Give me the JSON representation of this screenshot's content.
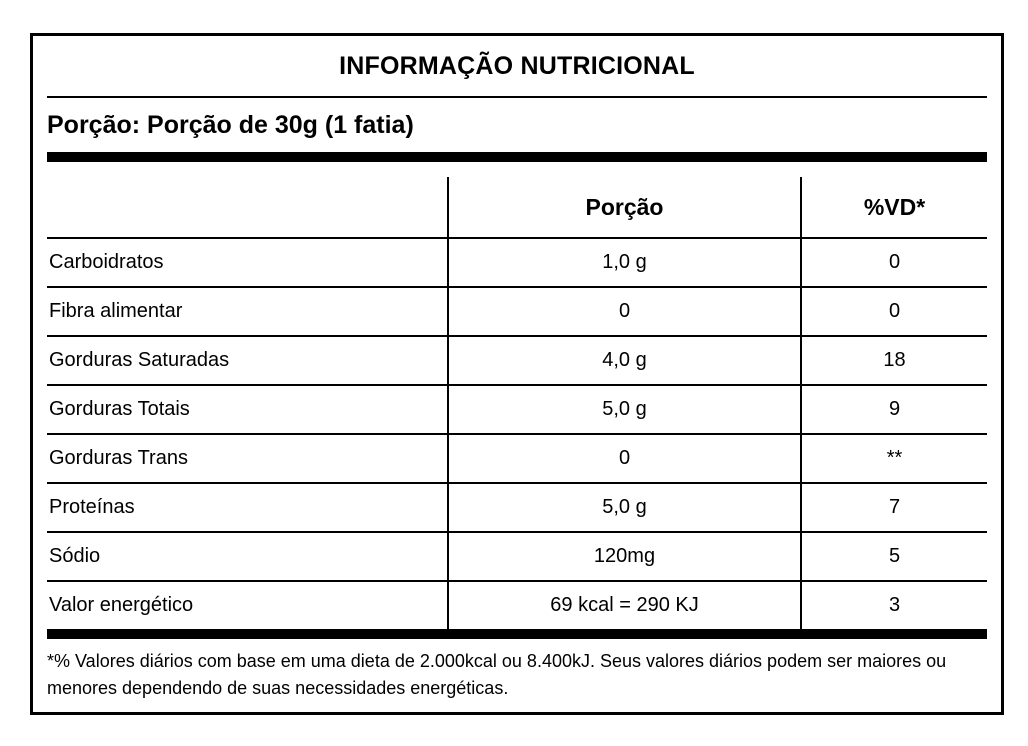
{
  "label": {
    "title": "INFORMAÇÃO NUTRICIONAL",
    "serving_line": "Porção: Porção de 30g (1 fatia)",
    "table": {
      "columns": [
        "",
        "Porção",
        "%VD*"
      ],
      "rows": [
        {
          "name": "Carboidratos",
          "amount": "1,0 g",
          "dv": "0"
        },
        {
          "name": "Fibra alimentar",
          "amount": "0",
          "dv": "0"
        },
        {
          "name": "Gorduras Saturadas",
          "amount": "4,0 g",
          "dv": "18"
        },
        {
          "name": "Gorduras Totais",
          "amount": "5,0 g",
          "dv": "9"
        },
        {
          "name": "Gorduras Trans",
          "amount": "0",
          "dv": "**"
        },
        {
          "name": "Proteínas",
          "amount": "5,0 g",
          "dv": "7"
        },
        {
          "name": "Sódio",
          "amount": "120mg",
          "dv": "5"
        },
        {
          "name": "Valor energético",
          "amount": "69 kcal = 290 KJ",
          "dv": "3"
        }
      ]
    },
    "footnote": "*% Valores diários com base em uma dieta de 2.000kcal ou 8.400kJ. Seus valores diários podem ser maiores ou menores dependendo de suas necessidades energéticas.",
    "colors": {
      "foreground": "#000000",
      "background": "#ffffff"
    }
  }
}
